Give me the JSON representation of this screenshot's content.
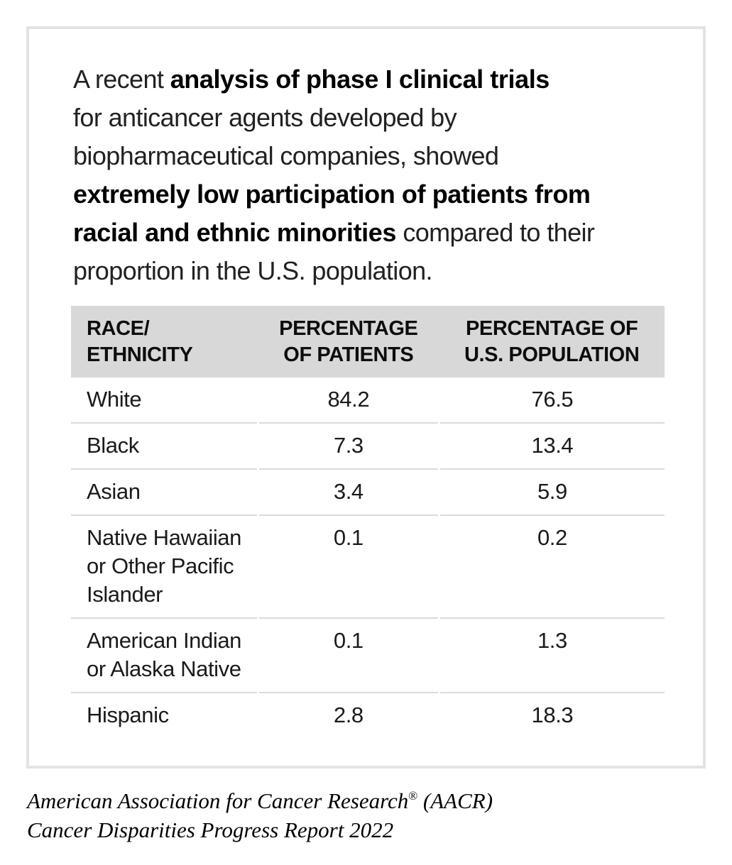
{
  "panel": {
    "border_color": "#e3e3e3",
    "background": "#ffffff"
  },
  "paragraph": {
    "lines": [
      {
        "pre": "A recent ",
        "bold": "analysis of phase I clinical trials",
        "post": ""
      },
      {
        "pre": "for anticancer agents developed by",
        "bold": "",
        "post": ""
      },
      {
        "pre": "biopharmaceutical companies, showed",
        "bold": "",
        "post": ""
      },
      {
        "pre": "",
        "bold": "extremely low participation of patients from",
        "post": ""
      },
      {
        "pre": "",
        "bold": "racial and ethnic minorities",
        "post": " compared to their"
      },
      {
        "pre": "proportion in the U.S. population.",
        "bold": "",
        "post": ""
      }
    ]
  },
  "table": {
    "header_bg": "#d8d8d8",
    "divider_color": "#dbdbdb",
    "headers": {
      "race": "RACE/\nETHNICITY",
      "patients": "PERCENTAGE\nOF PATIENTS",
      "population": "PERCENTAGE OF\nU.S. POPULATION"
    },
    "rows": [
      {
        "race": "White",
        "patients": "84.2",
        "population": "76.5"
      },
      {
        "race": "Black",
        "patients": "7.3",
        "population": "13.4"
      },
      {
        "race": "Asian",
        "patients": "3.4",
        "population": "5.9"
      },
      {
        "race": "Native Hawaiian\nor Other Pacific\nIslander",
        "patients": "0.1",
        "population": "0.2"
      },
      {
        "race": "American Indian\nor Alaska Native",
        "patients": "0.1",
        "population": "1.3"
      },
      {
        "race": "Hispanic",
        "patients": "2.8",
        "population": "18.3"
      }
    ]
  },
  "attribution": {
    "line1_pre": "American Association for Cancer Research",
    "line1_reg": "®",
    "line1_post": " (AACR)",
    "line2": "Cancer Disparities Progress Report 2022"
  },
  "chart_data": {
    "type": "table",
    "title": "Participation in phase I clinical trials for anticancer agents vs. U.S. population share",
    "columns": [
      "RACE/ETHNICITY",
      "PERCENTAGE OF PATIENTS",
      "PERCENTAGE OF U.S. POPULATION"
    ],
    "rows": [
      [
        "White",
        84.2,
        76.5
      ],
      [
        "Black",
        7.3,
        13.4
      ],
      [
        "Asian",
        3.4,
        5.9
      ],
      [
        "Native Hawaiian or Other Pacific Islander",
        0.1,
        0.2
      ],
      [
        "American Indian or Alaska Native",
        0.1,
        1.3
      ],
      [
        "Hispanic",
        2.8,
        18.3
      ]
    ]
  }
}
